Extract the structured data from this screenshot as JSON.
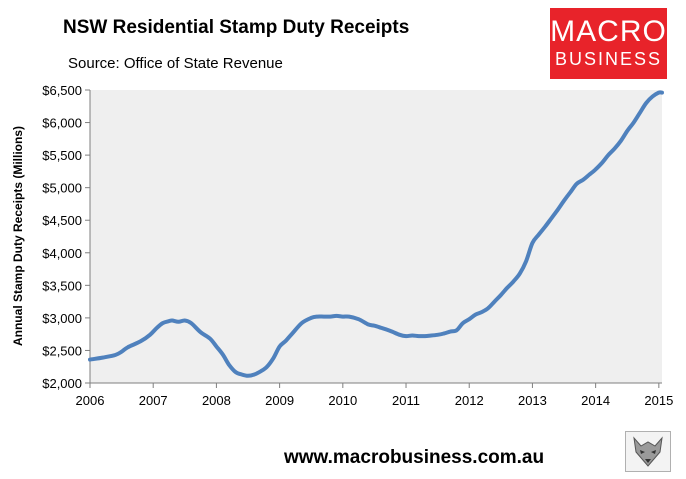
{
  "header": {
    "title": "NSW Residential Stamp Duty Receipts",
    "subtitle": "Source: Office of State Revenue"
  },
  "logo": {
    "line1": "MACRO",
    "line2": "BUSINESS",
    "bg": "#e8232a"
  },
  "footer": {
    "url": "www.macrobusiness.com.au",
    "icon": "wolf-logo-icon"
  },
  "chart_data": {
    "type": "line",
    "title": "NSW Residential Stamp Duty Receipts",
    "ylabel": "Annual Stamp Duty Receipts (Millions)",
    "xlabel": "",
    "xlim": [
      2006,
      2015.05
    ],
    "ylim": [
      2000,
      6500
    ],
    "x_ticks": [
      2006,
      2007,
      2008,
      2009,
      2010,
      2011,
      2012,
      2013,
      2014,
      2015
    ],
    "x_tick_labels": [
      "2006",
      "2007",
      "2008",
      "2009",
      "2010",
      "2011",
      "2012",
      "2013",
      "2014",
      "2015"
    ],
    "y_ticks": [
      2000,
      2500,
      3000,
      3500,
      4000,
      4500,
      5000,
      5500,
      6000,
      6500
    ],
    "y_tick_labels": [
      "$2,000",
      "$2,500",
      "$3,000",
      "$3,500",
      "$4,000",
      "$4,500",
      "$5,000",
      "$5,500",
      "$6,000",
      "$6,500"
    ],
    "grid": false,
    "line_color": "#4f81bd",
    "plot_bg": "#efefef",
    "series": [
      {
        "x": [
          2006.0,
          2006.2,
          2006.4,
          2006.5,
          2006.6,
          2006.8,
          2006.95,
          2007.05,
          2007.15,
          2007.25,
          2007.3,
          2007.4,
          2007.5,
          2007.6,
          2007.75,
          2007.9,
          2008.0,
          2008.1,
          2008.2,
          2008.3,
          2008.4,
          2008.5,
          2008.6,
          2008.7,
          2008.8,
          2008.9,
          2009.0,
          2009.1,
          2009.2,
          2009.35,
          2009.5,
          2009.6,
          2009.7,
          2009.8,
          2009.9,
          2010.0,
          2010.1,
          2010.25,
          2010.4,
          2010.5,
          2010.6,
          2010.75,
          2010.9,
          2011.0,
          2011.1,
          2011.2,
          2011.3,
          2011.4,
          2011.5,
          2011.6,
          2011.7,
          2011.8,
          2011.9,
          2012.0,
          2012.1,
          2012.2,
          2012.3,
          2012.4,
          2012.5,
          2012.6,
          2012.7,
          2012.8,
          2012.9,
          2013.0,
          2013.1,
          2013.2,
          2013.3,
          2013.4,
          2013.5,
          2013.6,
          2013.7,
          2013.8,
          2013.9,
          2014.0,
          2014.1,
          2014.2,
          2014.3,
          2014.4,
          2014.5,
          2014.6,
          2014.7,
          2014.8,
          2014.9,
          2015.0,
          2015.05
        ],
        "y": [
          2360,
          2390,
          2430,
          2480,
          2550,
          2640,
          2740,
          2840,
          2920,
          2950,
          2960,
          2940,
          2960,
          2920,
          2780,
          2680,
          2560,
          2440,
          2280,
          2170,
          2130,
          2110,
          2130,
          2180,
          2250,
          2380,
          2560,
          2650,
          2760,
          2920,
          3000,
          3020,
          3020,
          3020,
          3030,
          3020,
          3020,
          2980,
          2900,
          2880,
          2850,
          2800,
          2740,
          2720,
          2730,
          2720,
          2720,
          2730,
          2740,
          2760,
          2790,
          2810,
          2920,
          2980,
          3050,
          3090,
          3150,
          3250,
          3350,
          3460,
          3560,
          3680,
          3870,
          4150,
          4280,
          4400,
          4530,
          4660,
          4800,
          4930,
          5060,
          5120,
          5200,
          5280,
          5380,
          5500,
          5600,
          5720,
          5870,
          6000,
          6150,
          6300,
          6400,
          6460,
          6460
        ]
      }
    ]
  }
}
